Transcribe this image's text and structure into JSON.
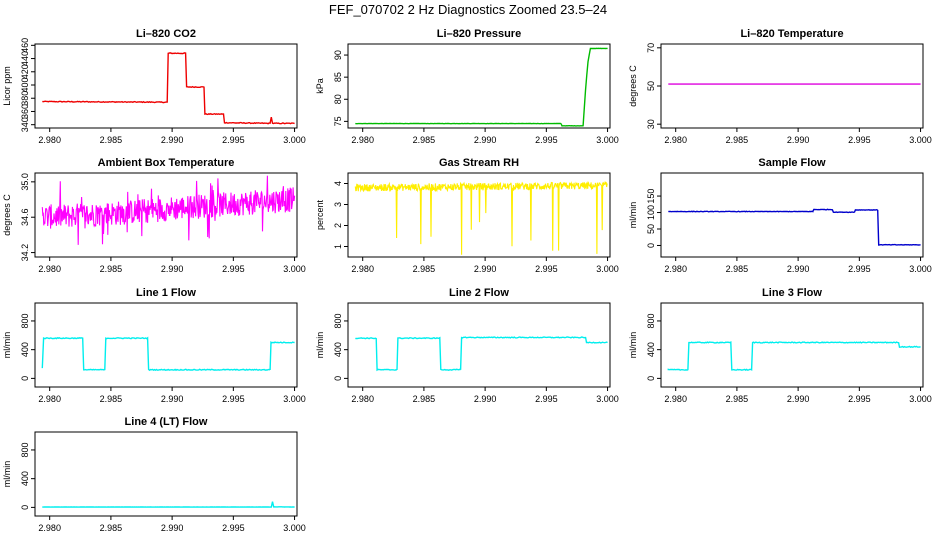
{
  "title": "FEF_070702  2 Hz Diagnostics Zoomed 23.5–24",
  "chart_data": [
    {
      "type": "line",
      "title": "Li–820 CO2",
      "ylabel": "Licor ppm",
      "xlim": [
        2.9788,
        3.0002
      ],
      "ylim": [
        335,
        462
      ],
      "xticks": [
        2.98,
        2.985,
        2.99,
        2.995,
        3.0
      ],
      "xtick_labels": [
        "2.980",
        "2.985",
        "2.990",
        "2.995",
        "3.000"
      ],
      "yticks": [
        340,
        360,
        380,
        400,
        420,
        440,
        460
      ],
      "ytick_labels": [
        "340",
        "360",
        "380",
        "400",
        "420",
        "440",
        "460"
      ],
      "color": "#ee0000",
      "series": [
        {
          "x": [
            2.9794,
            2.9896,
            2.9896,
            2.9911,
            2.9911,
            2.9926,
            2.9926,
            2.9942,
            2.9942,
            2.998,
            2.9981,
            2.9982,
            3.0
          ],
          "y": [
            375,
            374,
            448,
            448,
            397,
            397,
            356,
            356,
            343,
            342,
            352,
            342,
            342
          ]
        }
      ]
    },
    {
      "type": "line",
      "title": "Li–820 Pressure",
      "ylabel": "kPa",
      "xlim": [
        2.9788,
        3.0002
      ],
      "ylim": [
        73.5,
        92.5
      ],
      "xticks": [
        2.98,
        2.985,
        2.99,
        2.995,
        3.0
      ],
      "xtick_labels": [
        "2.980",
        "2.985",
        "2.990",
        "2.995",
        "3.000"
      ],
      "yticks": [
        75,
        80,
        85,
        90
      ],
      "ytick_labels": [
        "75",
        "80",
        "85",
        "90"
      ],
      "color": "#00bb00",
      "series": [
        {
          "x": [
            2.9794,
            2.9962,
            2.9962,
            2.998,
            2.9982,
            2.9984,
            2.9986,
            3.0
          ],
          "y": [
            74.5,
            74.5,
            74.0,
            74.0,
            82.0,
            88.5,
            91.5,
            91.5
          ]
        }
      ]
    },
    {
      "type": "line",
      "title": "Li–820 Temperature",
      "ylabel": "degrees C",
      "xlim": [
        2.9788,
        3.0002
      ],
      "ylim": [
        28,
        72
      ],
      "xticks": [
        2.98,
        2.985,
        2.99,
        2.995,
        3.0
      ],
      "xtick_labels": [
        "2.980",
        "2.985",
        "2.990",
        "2.995",
        "3.000"
      ],
      "yticks": [
        30,
        50,
        70
      ],
      "ytick_labels": [
        "30",
        "50",
        "70"
      ],
      "color": "#dd00dd",
      "series": [
        {
          "x": [
            2.9794,
            3.0
          ],
          "y": [
            51,
            51
          ]
        }
      ]
    },
    {
      "type": "line",
      "title": "Ambient Box Temperature",
      "ylabel": "degrees C",
      "xlim": [
        2.9788,
        3.0002
      ],
      "ylim": [
        34.15,
        35.1
      ],
      "xticks": [
        2.98,
        2.985,
        2.99,
        2.995,
        3.0
      ],
      "xtick_labels": [
        "2.980",
        "2.985",
        "2.990",
        "2.995",
        "3.000"
      ],
      "yticks": [
        34.2,
        34.6,
        35.0
      ],
      "ytick_labels": [
        "34.2",
        "34.6",
        "35.0"
      ],
      "color": "#ff00ff",
      "series": [
        {
          "x": [
            2.9794,
            2.986,
            2.99,
            3.0
          ],
          "y": [
            34.6,
            34.65,
            34.7,
            34.8
          ]
        }
      ]
    },
    {
      "type": "line",
      "title": "Gas Stream RH",
      "ylabel": "percent",
      "xlim": [
        2.9788,
        3.0002
      ],
      "ylim": [
        0.5,
        4.5
      ],
      "xticks": [
        2.98,
        2.985,
        2.99,
        2.995,
        3.0
      ],
      "xtick_labels": [
        "2.980",
        "2.985",
        "2.990",
        "2.995",
        "3.000"
      ],
      "yticks": [
        1,
        2,
        3,
        4
      ],
      "ytick_labels": [
        "1",
        "2",
        "3",
        "4"
      ],
      "color": "#ffee00",
      "series": [
        {
          "x": [
            2.9794,
            3.0
          ],
          "y": [
            3.8,
            3.9
          ]
        }
      ]
    },
    {
      "type": "line",
      "title": "Sample Flow",
      "ylabel": "ml/min",
      "xlim": [
        2.9788,
        3.0002
      ],
      "ylim": [
        -35,
        220
      ],
      "xticks": [
        2.98,
        2.985,
        2.99,
        2.995,
        3.0
      ],
      "xtick_labels": [
        "2.980",
        "2.985",
        "2.990",
        "2.995",
        "3.000"
      ],
      "yticks": [
        0,
        50,
        100,
        150
      ],
      "ytick_labels": [
        "0",
        "50",
        "100",
        "150"
      ],
      "color": "#0000cc",
      "series": [
        {
          "x": [
            2.9794,
            2.9912,
            2.9912,
            2.9928,
            2.9928,
            2.9946,
            2.9946,
            2.9965,
            2.9965,
            3.0
          ],
          "y": [
            103,
            103,
            109,
            109,
            101,
            101,
            108,
            108,
            2,
            2
          ]
        }
      ]
    },
    {
      "type": "line",
      "title": "Line 1 Flow",
      "ylabel": "ml/min",
      "xlim": [
        2.9788,
        3.0002
      ],
      "ylim": [
        -120,
        1050
      ],
      "xticks": [
        2.98,
        2.985,
        2.99,
        2.995,
        3.0
      ],
      "xtick_labels": [
        "2.980",
        "2.985",
        "2.990",
        "2.995",
        "3.000"
      ],
      "yticks": [
        0,
        400,
        800
      ],
      "ytick_labels": [
        "0",
        "400",
        "800"
      ],
      "color": "#00eeee",
      "series": [
        {
          "x": [
            2.9794,
            2.9795,
            2.9827,
            2.9827,
            2.9845,
            2.9845,
            2.988,
            2.988,
            2.998,
            2.998,
            3.0
          ],
          "y": [
            140,
            560,
            560,
            120,
            120,
            560,
            560,
            120,
            120,
            500,
            500
          ]
        }
      ]
    },
    {
      "type": "line",
      "title": "Line 2 Flow",
      "ylabel": "ml/min",
      "xlim": [
        2.9788,
        3.0002
      ],
      "ylim": [
        -120,
        1050
      ],
      "xticks": [
        2.98,
        2.985,
        2.99,
        2.995,
        3.0
      ],
      "xtick_labels": [
        "2.980",
        "2.985",
        "2.990",
        "2.995",
        "3.000"
      ],
      "yticks": [
        0,
        400,
        800
      ],
      "ytick_labels": [
        "0",
        "400",
        "800"
      ],
      "color": "#00eeee",
      "series": [
        {
          "x": [
            2.9794,
            2.9811,
            2.9811,
            2.9828,
            2.9828,
            2.9863,
            2.9863,
            2.988,
            2.988,
            2.9982,
            2.9982,
            3.0
          ],
          "y": [
            560,
            560,
            120,
            120,
            560,
            560,
            120,
            120,
            570,
            570,
            500,
            500
          ]
        }
      ]
    },
    {
      "type": "line",
      "title": "Line 3 Flow",
      "ylabel": "ml/min",
      "xlim": [
        2.9788,
        3.0002
      ],
      "ylim": [
        -120,
        1050
      ],
      "xticks": [
        2.98,
        2.985,
        2.99,
        2.995,
        3.0
      ],
      "xtick_labels": [
        "2.980",
        "2.985",
        "2.990",
        "2.995",
        "3.000"
      ],
      "yticks": [
        0,
        400,
        800
      ],
      "ytick_labels": [
        "0",
        "400",
        "800"
      ],
      "color": "#00eeee",
      "series": [
        {
          "x": [
            2.9794,
            2.9794,
            2.9795,
            2.981,
            2.981,
            2.9845,
            2.9845,
            2.9862,
            2.9862,
            2.9982,
            2.9982,
            3.0
          ],
          "y": [
            120,
            500,
            120,
            120,
            500,
            500,
            120,
            120,
            500,
            500,
            440,
            440
          ]
        }
      ]
    },
    {
      "type": "line",
      "title": "Line 4 (LT) Flow",
      "ylabel": "ml/min",
      "xlim": [
        2.9788,
        3.0002
      ],
      "ylim": [
        -120,
        1050
      ],
      "xticks": [
        2.98,
        2.985,
        2.99,
        2.995,
        3.0
      ],
      "xtick_labels": [
        "2.980",
        "2.985",
        "2.990",
        "2.995",
        "3.000"
      ],
      "yticks": [
        0,
        400,
        800
      ],
      "ytick_labels": [
        "0",
        "400",
        "800"
      ],
      "color": "#00eeee",
      "series": [
        {
          "x": [
            2.9794,
            2.9981,
            2.9982,
            2.9983,
            3.0
          ],
          "y": [
            5,
            5,
            80,
            8,
            5
          ]
        }
      ]
    }
  ]
}
